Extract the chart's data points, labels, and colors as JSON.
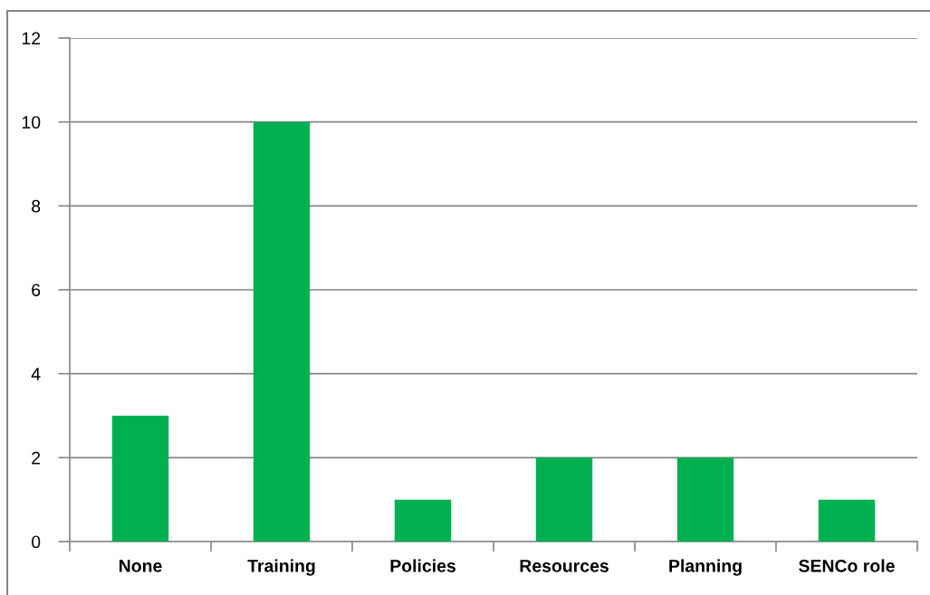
{
  "chart_data": {
    "type": "bar",
    "categories": [
      "None",
      "Training",
      "Policies",
      "Resources",
      "Planning",
      "SENCo role"
    ],
    "values": [
      3,
      10,
      1,
      2,
      2,
      1
    ],
    "color": "#00b050",
    "ylim": [
      0,
      12
    ],
    "yticks": [
      0,
      2,
      4,
      6,
      8,
      10,
      12
    ],
    "grid": "y"
  }
}
